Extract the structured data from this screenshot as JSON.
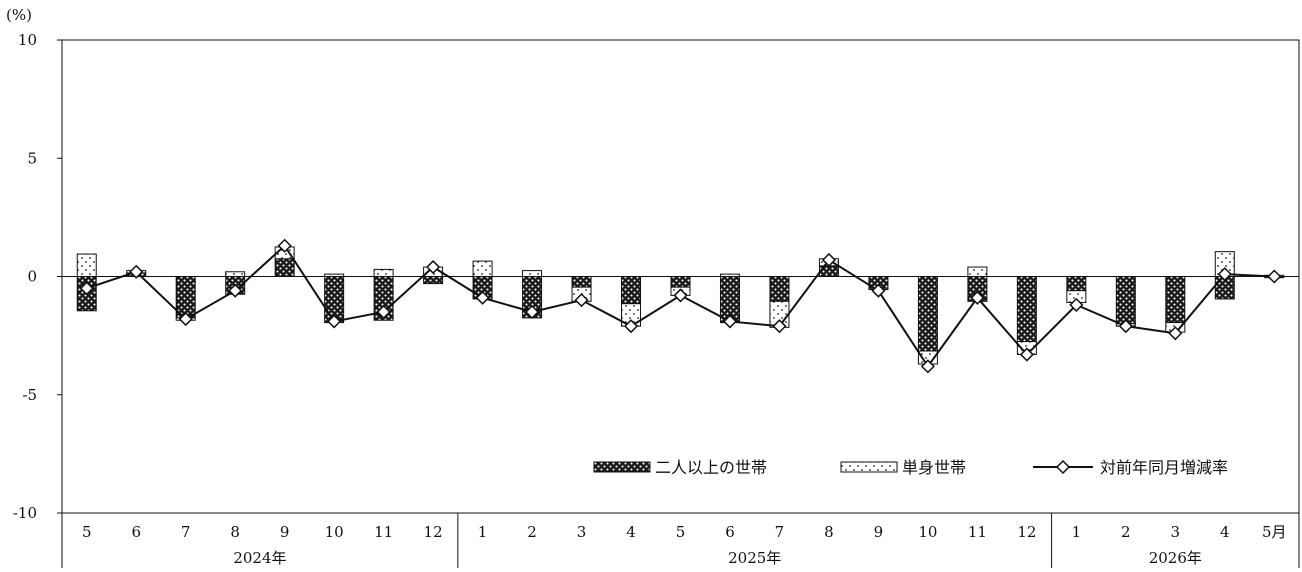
{
  "chart_data": {
    "type": "bar",
    "subtype": "stacked-bar-with-line",
    "ylabel": "(%)",
    "ylim": [
      -10,
      10
    ],
    "yticks": [
      "10",
      "5",
      "0",
      "-5",
      "-10"
    ],
    "categories": [
      "5",
      "6",
      "7",
      "8",
      "9",
      "10",
      "11",
      "12",
      "1",
      "2",
      "3",
      "4",
      "5",
      "6",
      "7",
      "8",
      "9",
      "10",
      "11",
      "12",
      "1",
      "2",
      "3",
      "4",
      "5月"
    ],
    "year_groups": [
      {
        "label": "2024年",
        "count": 8
      },
      {
        "label": "2025年",
        "count": 12
      },
      {
        "label": "2026年",
        "count": 5
      }
    ],
    "series": [
      {
        "name": "二人以上の世帯",
        "kind": "bar",
        "pattern": "dense-dark",
        "values": [
          -1.45,
          0.15,
          -1.75,
          -0.75,
          0.75,
          -1.95,
          -1.85,
          -0.3,
          -0.95,
          -1.75,
          -0.45,
          -1.15,
          -0.45,
          -1.95,
          -1.05,
          0.45,
          -0.5,
          -3.15,
          -1.05,
          -2.75,
          -0.6,
          -2.0,
          -1.95,
          -0.95,
          -0.05
        ]
      },
      {
        "name": "単身世帯",
        "kind": "bar",
        "pattern": "sparse-dots",
        "values": [
          0.95,
          0.1,
          -0.1,
          0.2,
          0.5,
          0.1,
          0.3,
          0.4,
          0.65,
          0.25,
          -0.6,
          -0.95,
          -0.35,
          0.1,
          -1.1,
          0.3,
          -0.05,
          -0.55,
          0.4,
          -0.55,
          -0.5,
          -0.1,
          -0.4,
          1.05,
          0.05
        ]
      },
      {
        "name": "対前年同月増減率",
        "kind": "line",
        "marker": "diamond",
        "values": [
          -0.5,
          0.2,
          -1.8,
          -0.6,
          1.3,
          -1.9,
          -1.5,
          0.4,
          -0.9,
          -1.5,
          -1.0,
          -2.1,
          -0.8,
          -1.9,
          -2.1,
          0.7,
          -0.6,
          -3.8,
          -0.9,
          -3.3,
          -1.2,
          -2.1,
          -2.4,
          0.1,
          0.0
        ]
      }
    ],
    "grid": false,
    "legend_position": "bottom-right inside plot"
  }
}
